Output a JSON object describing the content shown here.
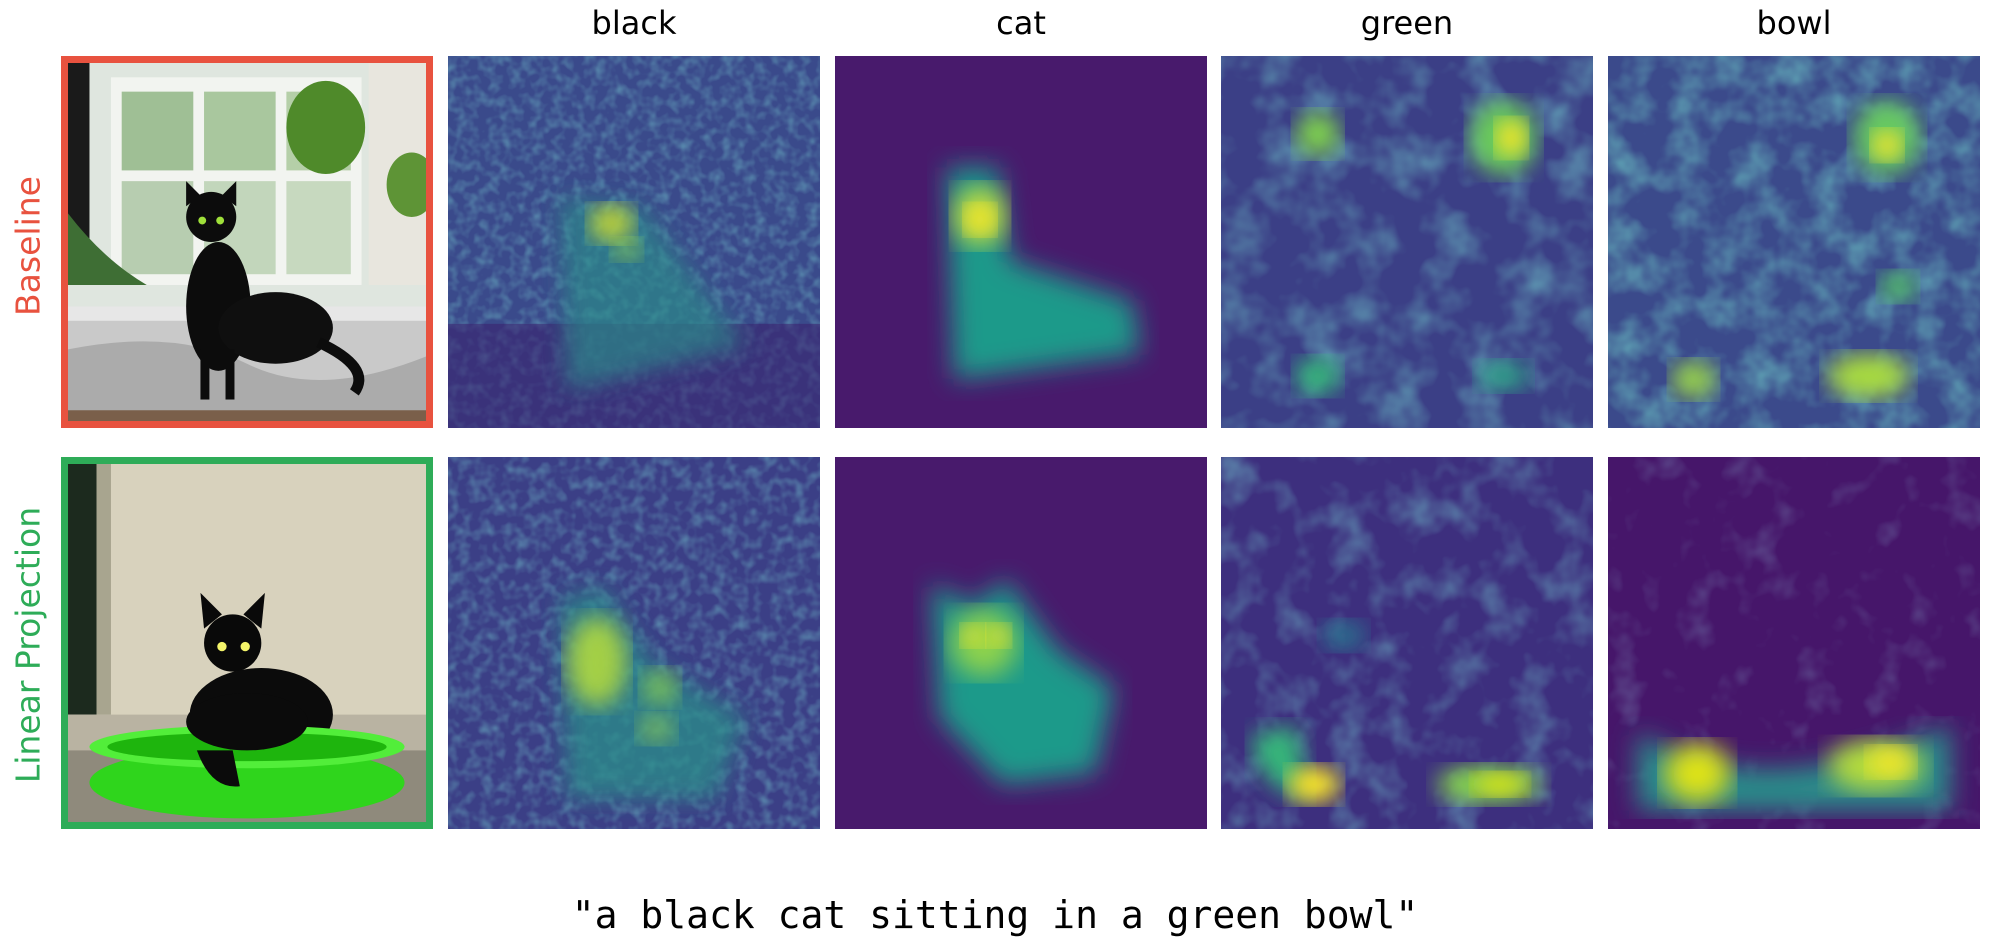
{
  "columns": [
    "black",
    "cat",
    "green",
    "bowl"
  ],
  "rows": [
    {
      "label": "Baseline",
      "color": "#e8523f"
    },
    {
      "label": "Linear Projection",
      "color": "#2eac58"
    }
  ],
  "caption": "\"a black cat sitting in a green bowl\"",
  "colormap": "viridis",
  "colors": {
    "viridis_low": "#440154",
    "viridis_mid": "#21918c",
    "viridis_high": "#fde725",
    "bowl_green": "#3be82a"
  }
}
